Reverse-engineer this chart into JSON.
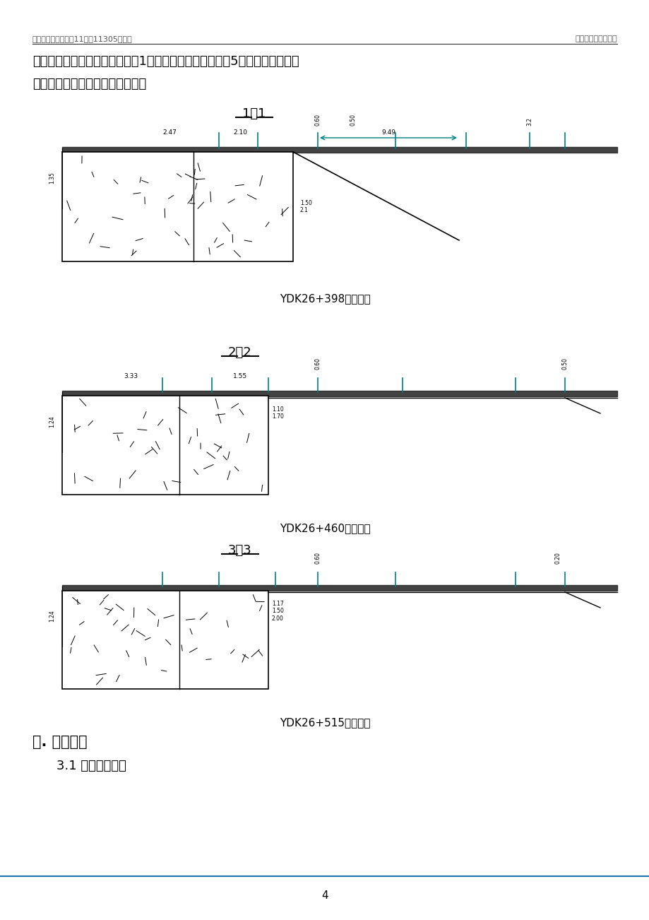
{
  "header_left": "深圳市城市轨道交通11号线11305标工程",
  "header_right": "钻孔灌注桩施工方案",
  "page_number": "4",
  "paragraph_text": "平行线路，里面现有一根电缆及1根光缆，横穿线路方向有5处电缆）。管线迁\n改具体详见管线改迁设计施工图。",
  "section1_label": "1－1",
  "section1_caption": "YDK26+398横断面图",
  "section2_label": "2－2",
  "section2_caption": "YDK26+460横断面图",
  "section3_label": "3－3",
  "section3_caption": "YDK26+515横断面图",
  "heading_text": "三. 施工准备",
  "subheading_text": "3.1 现场条件准备",
  "bg_color": "#ffffff",
  "text_color": "#000000",
  "teal_color": "#008080",
  "drawing_line_color": "#000000",
  "gray_color": "#808080"
}
